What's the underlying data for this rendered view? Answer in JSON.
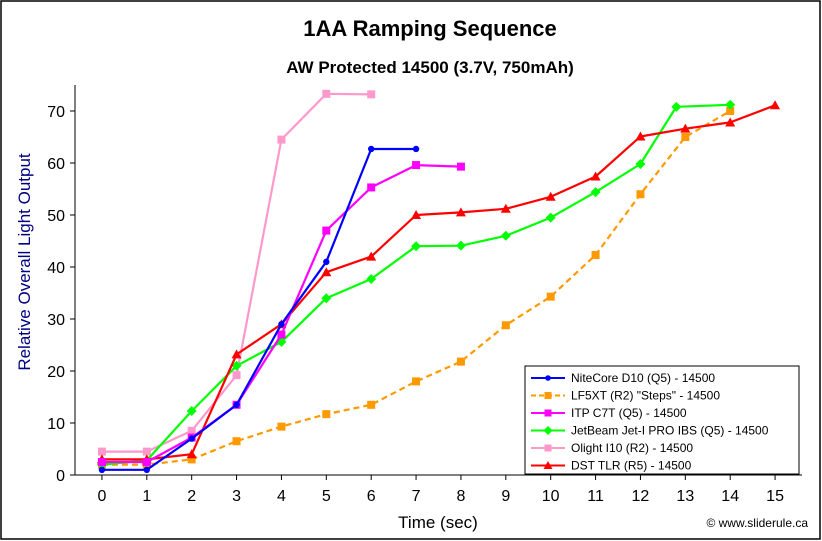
{
  "chart_data": {
    "type": "line",
    "title": "1AA Ramping Sequence",
    "subtitle": "AW Protected 14500 (3.7V, 750mAh)",
    "xlabel": "Time (sec)",
    "ylabel": "Relative Overall Light Output",
    "xlim": [
      -0.6,
      15.6
    ],
    "ylim": [
      0,
      75
    ],
    "x_ticks": [
      0,
      1,
      2,
      3,
      4,
      5,
      6,
      7,
      8,
      9,
      10,
      11,
      12,
      13,
      14,
      15
    ],
    "y_ticks": [
      0,
      10,
      20,
      30,
      40,
      50,
      60,
      70
    ],
    "grid": false,
    "legend_position": "bottom-right",
    "credit": "© www.sliderule.ca",
    "series": [
      {
        "name": "NiteCore D10 (Q5) - 14500",
        "color": "#0000ff",
        "marker": "circle",
        "dashed": false,
        "points": [
          [
            0,
            1
          ],
          [
            1,
            1
          ],
          [
            2,
            7
          ],
          [
            3,
            13.5
          ],
          [
            4,
            29
          ],
          [
            5,
            41
          ],
          [
            6,
            62.7
          ],
          [
            7,
            62.7
          ]
        ]
      },
      {
        "name": "LF5XT (R2) \"Steps\" - 14500",
        "color": "#ff9900",
        "marker": "square",
        "dashed": true,
        "points": [
          [
            0,
            2
          ],
          [
            1,
            2
          ],
          [
            2,
            3
          ],
          [
            3,
            6.5
          ],
          [
            4,
            9.3
          ],
          [
            5,
            11.7
          ],
          [
            6,
            13.5
          ],
          [
            7,
            18
          ],
          [
            8,
            21.8
          ],
          [
            9,
            28.8
          ],
          [
            10,
            34.3
          ],
          [
            11,
            42.3
          ],
          [
            12,
            54
          ],
          [
            13,
            65
          ],
          [
            14,
            70
          ]
        ]
      },
      {
        "name": "ITP C7T (Q5) - 14500",
        "color": "#ff00ff",
        "marker": "square",
        "dashed": false,
        "points": [
          [
            0,
            2.5
          ],
          [
            1,
            2.5
          ],
          [
            2,
            7.2
          ],
          [
            3,
            13.5
          ],
          [
            4,
            27
          ],
          [
            5,
            47
          ],
          [
            6,
            55.3
          ],
          [
            7,
            59.6
          ],
          [
            8,
            59.3
          ]
        ]
      },
      {
        "name": "JetBeam Jet-I PRO IBS (Q5) - 14500",
        "color": "#00ff00",
        "marker": "diamond",
        "dashed": false,
        "points": [
          [
            0,
            2
          ],
          [
            1,
            2.8
          ],
          [
            2,
            12.3
          ],
          [
            3,
            21
          ],
          [
            4,
            25.6
          ],
          [
            5,
            34
          ],
          [
            6,
            37.7
          ],
          [
            7,
            44
          ],
          [
            8,
            44.1
          ],
          [
            9,
            46
          ],
          [
            10,
            49.5
          ],
          [
            11,
            54.4
          ],
          [
            12,
            59.8
          ],
          [
            12.8,
            70.8
          ],
          [
            14,
            71.2
          ]
        ]
      },
      {
        "name": "Olight I10 (R2) - 14500",
        "color": "#ff99cc",
        "marker": "square",
        "dashed": false,
        "points": [
          [
            0,
            4.5
          ],
          [
            1,
            4.5
          ],
          [
            2,
            8.5
          ],
          [
            3,
            19.2
          ],
          [
            4,
            64.5
          ],
          [
            5,
            73.3
          ],
          [
            6,
            73.2
          ]
        ]
      },
      {
        "name": "DST TLR (R5) - 14500",
        "color": "#ff0000",
        "marker": "triangle",
        "dashed": false,
        "points": [
          [
            0,
            3
          ],
          [
            1,
            3
          ],
          [
            2,
            4
          ],
          [
            3,
            23.2
          ],
          [
            4,
            29
          ],
          [
            5,
            39
          ],
          [
            6,
            42
          ],
          [
            7,
            50
          ],
          [
            8,
            50.5
          ],
          [
            9,
            51.2
          ],
          [
            10,
            53.5
          ],
          [
            11,
            57.4
          ],
          [
            12,
            65.1
          ],
          [
            13,
            66.6
          ],
          [
            14,
            67.8
          ],
          [
            15,
            71.1
          ]
        ]
      }
    ]
  }
}
